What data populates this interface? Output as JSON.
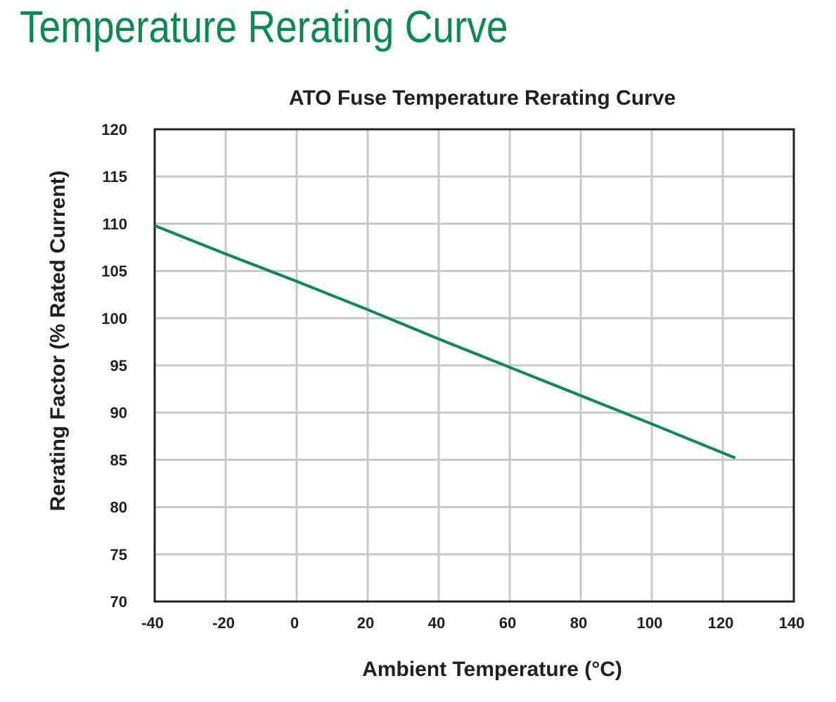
{
  "page": {
    "heading": "Temperature Rerating Curve"
  },
  "colors": {
    "heading": "#078a50",
    "series": "#078a50",
    "grid": "#c8c8c8",
    "axis": "#231f20",
    "text": "#231f20"
  },
  "chart_data": {
    "type": "line",
    "title": "ATO Fuse Temperature Rerating Curve",
    "xlabel": "Ambient Temperature (°C)",
    "ylabel": "Rerating Factor (% Rated Current)",
    "xlim": [
      -40,
      140
    ],
    "ylim": [
      70,
      120
    ],
    "xticks": [
      -40,
      -20,
      0,
      20,
      40,
      60,
      80,
      100,
      120,
      140
    ],
    "yticks": [
      70,
      75,
      80,
      85,
      90,
      95,
      100,
      105,
      110,
      115,
      120
    ],
    "grid": true,
    "series": [
      {
        "name": "ATO Fuse",
        "x": [
          -40,
          -20,
          0,
          20,
          40,
          60,
          80,
          100,
          123.5
        ],
        "y": [
          109.8,
          106.8,
          103.9,
          100.9,
          97.8,
          94.8,
          91.8,
          88.8,
          85.2
        ]
      }
    ]
  }
}
